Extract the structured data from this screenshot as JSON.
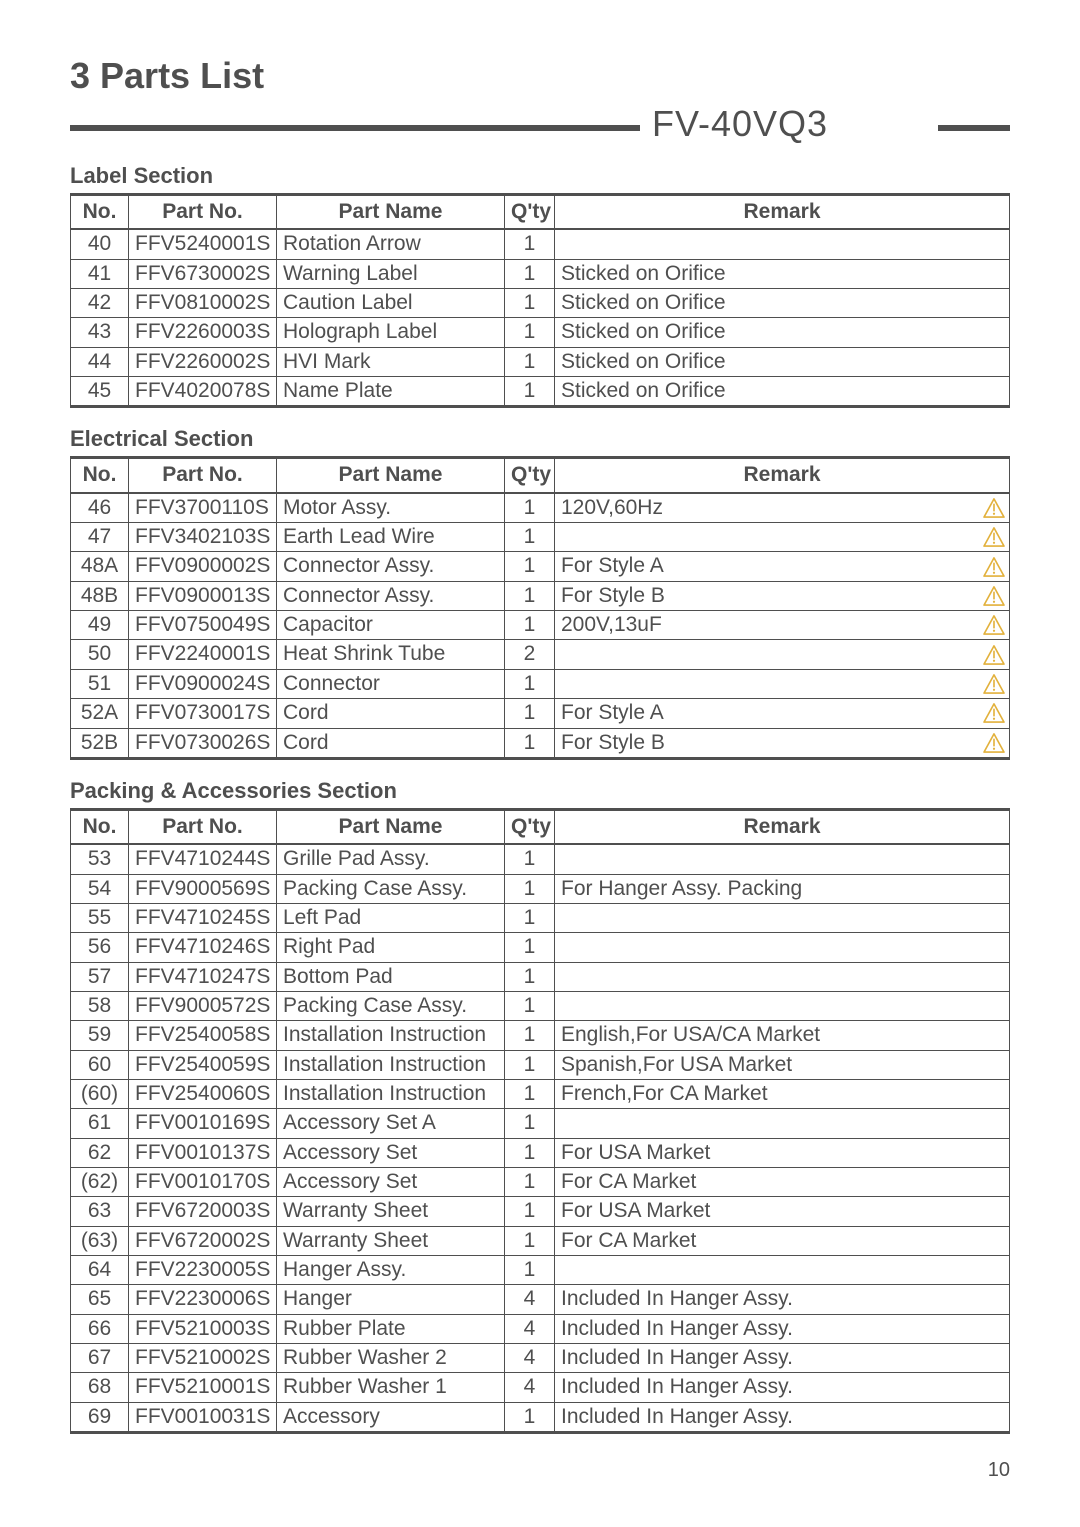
{
  "page_title": "3 Parts List",
  "model": "FV-40VQ3",
  "page_number": "10",
  "headers": {
    "no": "No.",
    "pn": "Part No.",
    "name": "Part Name",
    "qty": "Q'ty",
    "remark": "Remark"
  },
  "colors": {
    "line": "#4f4f4f",
    "text": "#4f4f4f",
    "warn_stroke": "#e2b13c",
    "bg": "#ffffff"
  },
  "sections": [
    {
      "title": "Label Section",
      "rows": [
        {
          "no": "40",
          "pn": "FFV5240001S",
          "name": "Rotation Arrow",
          "qty": "1",
          "remark": "",
          "warn": false
        },
        {
          "no": "41",
          "pn": "FFV6730002S",
          "name": "Warning Label",
          "qty": "1",
          "remark": "Sticked on Orifice",
          "warn": false
        },
        {
          "no": "42",
          "pn": "FFV0810002S",
          "name": "Caution Label",
          "qty": "1",
          "remark": "Sticked on Orifice",
          "warn": false
        },
        {
          "no": "43",
          "pn": "FFV2260003S",
          "name": "Holograph Label",
          "qty": "1",
          "remark": "Sticked on Orifice",
          "warn": false
        },
        {
          "no": "44",
          "pn": "FFV2260002S",
          "name": "HVI Mark",
          "qty": "1",
          "remark": "Sticked on Orifice",
          "warn": false
        },
        {
          "no": "45",
          "pn": "FFV4020078S",
          "name": "Name Plate",
          "qty": "1",
          "remark": "Sticked on Orifice",
          "warn": false
        }
      ]
    },
    {
      "title": "Electrical Section",
      "rows": [
        {
          "no": "46",
          "pn": "FFV3700110S",
          "name": "Motor Assy.",
          "qty": "1",
          "remark": "120V,60Hz",
          "warn": true
        },
        {
          "no": "47",
          "pn": "FFV3402103S",
          "name": "Earth Lead Wire",
          "qty": "1",
          "remark": "",
          "warn": true
        },
        {
          "no": "48A",
          "pn": "FFV0900002S",
          "name": "Connector Assy.",
          "qty": "1",
          "remark": "For Style A",
          "warn": true
        },
        {
          "no": "48B",
          "pn": "FFV0900013S",
          "name": "Connector Assy.",
          "qty": "1",
          "remark": "For Style B",
          "warn": true
        },
        {
          "no": "49",
          "pn": "FFV0750049S",
          "name": "Capacitor",
          "qty": "1",
          "remark": "200V,13uF",
          "warn": true
        },
        {
          "no": "50",
          "pn": "FFV2240001S",
          "name": "Heat Shrink Tube",
          "qty": "2",
          "remark": "",
          "warn": true
        },
        {
          "no": "51",
          "pn": "FFV0900024S",
          "name": "Connector",
          "qty": "1",
          "remark": "",
          "warn": true
        },
        {
          "no": "52A",
          "pn": "FFV0730017S",
          "name": "Cord",
          "qty": "1",
          "remark": "For Style A",
          "warn": true
        },
        {
          "no": "52B",
          "pn": "FFV0730026S",
          "name": "Cord",
          "qty": "1",
          "remark": "For Style B",
          "warn": true
        }
      ]
    },
    {
      "title": "Packing & Accessories Section",
      "rows": [
        {
          "no": "53",
          "pn": "FFV4710244S",
          "name": "Grille Pad Assy.",
          "qty": "1",
          "remark": "",
          "warn": false
        },
        {
          "no": "54",
          "pn": "FFV9000569S",
          "name": "Packing Case Assy.",
          "qty": "1",
          "remark": "For Hanger Assy. Packing",
          "warn": false
        },
        {
          "no": "55",
          "pn": "FFV4710245S",
          "name": "Left Pad",
          "qty": "1",
          "remark": "",
          "warn": false
        },
        {
          "no": "56",
          "pn": "FFV4710246S",
          "name": "Right Pad",
          "qty": "1",
          "remark": "",
          "warn": false
        },
        {
          "no": "57",
          "pn": "FFV4710247S",
          "name": "Bottom Pad",
          "qty": "1",
          "remark": "",
          "warn": false
        },
        {
          "no": "58",
          "pn": "FFV9000572S",
          "name": "Packing Case Assy.",
          "qty": "1",
          "remark": "",
          "warn": false
        },
        {
          "no": "59",
          "pn": "FFV2540058S",
          "name": "Installation Instruction",
          "qty": "1",
          "remark": "English,For USA/CA Market",
          "warn": false
        },
        {
          "no": "60",
          "pn": "FFV2540059S",
          "name": "Installation Instruction",
          "qty": "1",
          "remark": "Spanish,For USA Market",
          "warn": false
        },
        {
          "no": "(60)",
          "pn": "FFV2540060S",
          "name": "Installation Instruction",
          "qty": "1",
          "remark": "French,For CA Market",
          "warn": false
        },
        {
          "no": "61",
          "pn": "FFV0010169S",
          "name": "Accessory Set A",
          "qty": "1",
          "remark": "",
          "warn": false
        },
        {
          "no": "62",
          "pn": "FFV0010137S",
          "name": "Accessory Set",
          "qty": "1",
          "remark": "For USA Market",
          "warn": false
        },
        {
          "no": "(62)",
          "pn": "FFV0010170S",
          "name": "Accessory Set",
          "qty": "1",
          "remark": "For CA Market",
          "warn": false
        },
        {
          "no": "63",
          "pn": "FFV6720003S",
          "name": "Warranty Sheet",
          "qty": "1",
          "remark": "For USA Market",
          "warn": false
        },
        {
          "no": "(63)",
          "pn": "FFV6720002S",
          "name": "Warranty Sheet",
          "qty": "1",
          "remark": "For CA Market",
          "warn": false
        },
        {
          "no": "64",
          "pn": "FFV2230005S",
          "name": "Hanger Assy.",
          "qty": "1",
          "remark": "",
          "warn": false
        },
        {
          "no": "65",
          "pn": "FFV2230006S",
          "name": "Hanger",
          "qty": "4",
          "remark": "Included In Hanger Assy.",
          "warn": false
        },
        {
          "no": "66",
          "pn": "FFV5210003S",
          "name": "Rubber Plate",
          "qty": "4",
          "remark": "Included In Hanger Assy.",
          "warn": false
        },
        {
          "no": "67",
          "pn": "FFV5210002S",
          "name": "Rubber Washer 2",
          "qty": "4",
          "remark": "Included In Hanger Assy.",
          "warn": false
        },
        {
          "no": "68",
          "pn": "FFV5210001S",
          "name": "Rubber Washer 1",
          "qty": "4",
          "remark": "Included In Hanger Assy.",
          "warn": false
        },
        {
          "no": "69",
          "pn": "FFV0010031S",
          "name": "Accessory",
          "qty": "1",
          "remark": "Included In Hanger Assy.",
          "warn": false
        }
      ]
    }
  ]
}
